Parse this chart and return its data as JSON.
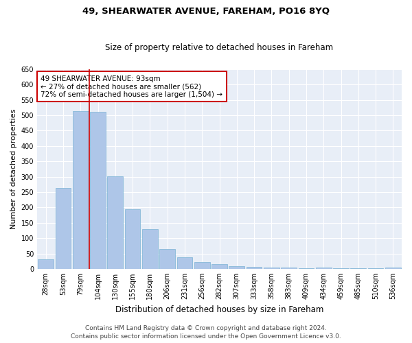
{
  "title": "49, SHEARWATER AVENUE, FAREHAM, PO16 8YQ",
  "subtitle": "Size of property relative to detached houses in Fareham",
  "xlabel": "Distribution of detached houses by size in Fareham",
  "ylabel": "Number of detached properties",
  "categories": [
    "28sqm",
    "53sqm",
    "79sqm",
    "104sqm",
    "130sqm",
    "155sqm",
    "180sqm",
    "206sqm",
    "231sqm",
    "256sqm",
    "282sqm",
    "307sqm",
    "333sqm",
    "358sqm",
    "383sqm",
    "409sqm",
    "434sqm",
    "459sqm",
    "485sqm",
    "510sqm",
    "536sqm"
  ],
  "values": [
    31,
    263,
    513,
    511,
    302,
    194,
    130,
    64,
    37,
    22,
    16,
    9,
    7,
    5,
    5,
    1,
    5,
    1,
    1,
    1,
    5
  ],
  "bar_color": "#aec6e8",
  "bar_edge_color": "#7ab3d4",
  "highlight_line_color": "#cc0000",
  "annotation_text": "49 SHEARWATER AVENUE: 93sqm\n← 27% of detached houses are smaller (562)\n72% of semi-detached houses are larger (1,504) →",
  "annotation_box_color": "#cc0000",
  "ylim": [
    0,
    650
  ],
  "yticks": [
    0,
    50,
    100,
    150,
    200,
    250,
    300,
    350,
    400,
    450,
    500,
    550,
    600,
    650
  ],
  "background_color": "#e8eef7",
  "footer_line1": "Contains HM Land Registry data © Crown copyright and database right 2024.",
  "footer_line2": "Contains public sector information licensed under the Open Government Licence v3.0.",
  "title_fontsize": 9.5,
  "subtitle_fontsize": 8.5,
  "xlabel_fontsize": 8.5,
  "ylabel_fontsize": 8,
  "tick_fontsize": 7,
  "annotation_fontsize": 7.5,
  "footer_fontsize": 6.5
}
